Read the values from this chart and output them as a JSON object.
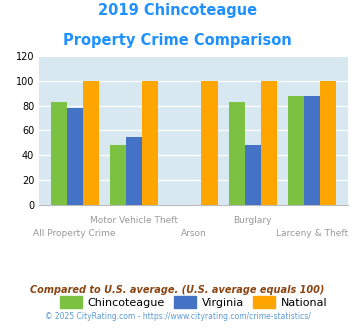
{
  "title_line1": "2019 Chincoteague",
  "title_line2": "Property Crime Comparison",
  "title_color": "#1E90FF",
  "categories": [
    "All Property Crime",
    "Motor Vehicle Theft",
    "Arson",
    "Burglary",
    "Larceny & Theft"
  ],
  "chincoteague": [
    83,
    48,
    0,
    83,
    88
  ],
  "virginia": [
    78,
    55,
    0,
    48,
    88
  ],
  "national": [
    100,
    100,
    100,
    100,
    100
  ],
  "color_chinco": "#7DC142",
  "color_virginia": "#4472C4",
  "color_national": "#FFA500",
  "ylim": [
    0,
    120
  ],
  "yticks": [
    0,
    20,
    40,
    60,
    80,
    100,
    120
  ],
  "bg_color": "#D8E8F0",
  "footnote1": "Compared to U.S. average. (U.S. average equals 100)",
  "footnote2": "© 2025 CityRating.com - https://www.cityrating.com/crime-statistics/",
  "footnote1_color": "#8B4513",
  "footnote2_color": "#5B9BD5",
  "legend_labels": [
    "Chincoteague",
    "Virginia",
    "National"
  ],
  "bar_width": 0.27
}
